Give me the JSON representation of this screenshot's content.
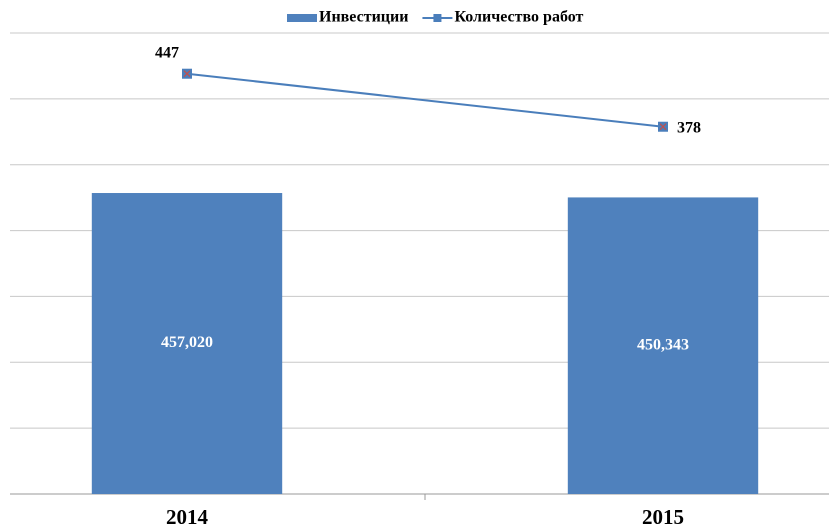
{
  "chart_data": {
    "type": "bar_line",
    "categories": [
      "2014",
      "2015"
    ],
    "series": [
      {
        "name": "Инвестиции",
        "type": "bar",
        "color": "#4f81bd",
        "values": [
          457020,
          450343
        ],
        "value_labels": [
          "457,020",
          "450,343"
        ]
      },
      {
        "name": "Количество работ",
        "type": "line",
        "axis": "y2",
        "color": "#4a7ebb",
        "values": [
          447,
          378
        ]
      }
    ],
    "ylim": [
      0,
      700000
    ],
    "yticks": [
      0,
      100000,
      200000,
      300000,
      400000,
      500000,
      600000,
      700000
    ],
    "y2lim": [
      -100,
      500
    ],
    "grid": true,
    "legend": "top"
  }
}
